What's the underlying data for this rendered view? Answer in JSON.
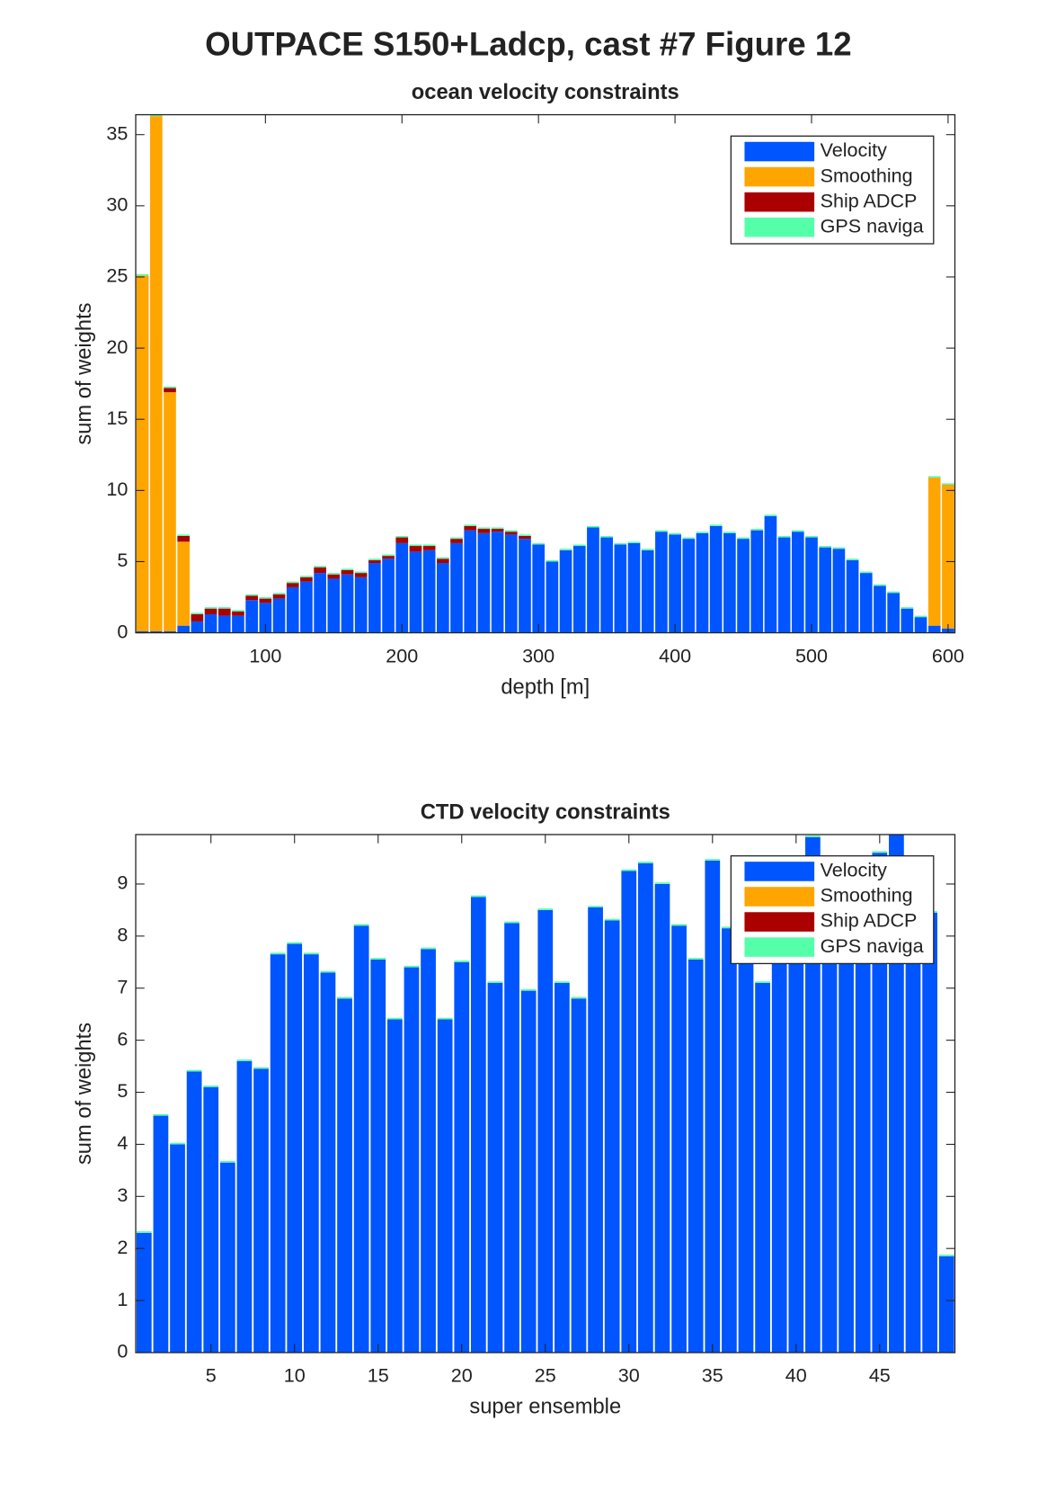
{
  "title": "OUTPACE S150+Ladcp, cast #7  Figure 12",
  "chart_data": [
    {
      "type": "bar",
      "stacked": true,
      "title": "ocean velocity constraints",
      "xlabel": "depth [m]",
      "ylabel": "sum of weights",
      "x": [
        10,
        20,
        30,
        40,
        50,
        60,
        70,
        80,
        90,
        100,
        110,
        120,
        130,
        140,
        150,
        160,
        170,
        180,
        190,
        200,
        210,
        220,
        230,
        240,
        250,
        260,
        270,
        280,
        290,
        300,
        310,
        320,
        330,
        340,
        350,
        360,
        370,
        380,
        390,
        400,
        410,
        420,
        430,
        440,
        450,
        460,
        470,
        480,
        490,
        500,
        510,
        520,
        530,
        540,
        550,
        560,
        570,
        580,
        590,
        600
      ],
      "xlim": [
        5,
        605
      ],
      "xticks": [
        100,
        200,
        300,
        400,
        500,
        600
      ],
      "ylim": [
        0,
        36.4
      ],
      "yticks": [
        0,
        5,
        10,
        15,
        20,
        25,
        30,
        35
      ],
      "legend": "upper right",
      "series": [
        {
          "name": "Velocity",
          "color": "#0055ff",
          "values": [
            0.1,
            0.1,
            0.1,
            0.5,
            0.8,
            1.3,
            1.2,
            1.2,
            2.3,
            2.1,
            2.4,
            3.2,
            3.6,
            4.2,
            3.8,
            4.1,
            3.9,
            4.9,
            5.2,
            6.3,
            5.7,
            5.8,
            4.9,
            6.3,
            7.2,
            7.0,
            7.1,
            6.9,
            6.6,
            6.2,
            5.0,
            5.8,
            6.1,
            7.4,
            6.7,
            6.2,
            6.3,
            5.8,
            7.1,
            6.9,
            6.6,
            7.0,
            7.5,
            7.0,
            6.6,
            7.2,
            8.2,
            6.7,
            7.1,
            6.7,
            6.0,
            5.9,
            5.1,
            4.2,
            3.3,
            2.8,
            1.7,
            1.1,
            0.5,
            0.3
          ]
        },
        {
          "name": "Smoothing",
          "color": "#ffa500",
          "values": [
            25.0,
            36.2,
            16.8,
            5.9,
            0,
            0,
            0,
            0,
            0,
            0,
            0,
            0,
            0,
            0,
            0,
            0,
            0,
            0,
            0,
            0,
            0,
            0,
            0,
            0,
            0,
            0,
            0,
            0,
            0,
            0,
            0,
            0,
            0,
            0,
            0,
            0,
            0,
            0,
            0,
            0,
            0,
            0,
            0,
            0,
            0,
            0,
            0,
            0,
            0,
            0,
            0,
            0,
            0,
            0,
            0,
            0,
            0,
            0,
            10.4,
            10.1
          ]
        },
        {
          "name": "Ship ADCP",
          "color": "#aa0000",
          "values": [
            0,
            0,
            0.3,
            0.4,
            0.5,
            0.4,
            0.5,
            0.3,
            0.3,
            0.3,
            0.3,
            0.3,
            0.3,
            0.4,
            0.3,
            0.3,
            0.3,
            0.2,
            0.2,
            0.4,
            0.4,
            0.3,
            0.3,
            0.3,
            0.3,
            0.3,
            0.2,
            0.2,
            0.2,
            0,
            0,
            0,
            0,
            0,
            0,
            0,
            0,
            0,
            0,
            0,
            0,
            0,
            0,
            0,
            0,
            0,
            0,
            0,
            0,
            0,
            0,
            0,
            0,
            0,
            0,
            0,
            0,
            0,
            0,
            0
          ]
        },
        {
          "name": "GPS naviga",
          "color": "#55ffaa",
          "values": [
            0.1,
            0.1,
            0.1,
            0.1,
            0.1,
            0.1,
            0.1,
            0.1,
            0.1,
            0.1,
            0.1,
            0.1,
            0.1,
            0.1,
            0.1,
            0.1,
            0.1,
            0.1,
            0.1,
            0.1,
            0.1,
            0.1,
            0.1,
            0.1,
            0.1,
            0.1,
            0.1,
            0.1,
            0.1,
            0.1,
            0.1,
            0.1,
            0.1,
            0.1,
            0.1,
            0.1,
            0.1,
            0.1,
            0.1,
            0.1,
            0.1,
            0.1,
            0.1,
            0.1,
            0.1,
            0.1,
            0.1,
            0.1,
            0.1,
            0.1,
            0.1,
            0.1,
            0.1,
            0.1,
            0.1,
            0.1,
            0.1,
            0.1,
            0.1,
            0.1
          ]
        }
      ]
    },
    {
      "type": "bar",
      "stacked": true,
      "title": "CTD velocity constraints",
      "xlabel": "super ensemble",
      "ylabel": "sum of weights",
      "x": [
        1,
        2,
        3,
        4,
        5,
        6,
        7,
        8,
        9,
        10,
        11,
        12,
        13,
        14,
        15,
        16,
        17,
        18,
        19,
        20,
        21,
        22,
        23,
        24,
        25,
        26,
        27,
        28,
        29,
        30,
        31,
        32,
        33,
        34,
        35,
        36,
        37,
        38,
        39,
        40,
        41,
        42,
        43,
        44,
        45,
        46,
        47,
        48,
        49
      ],
      "xlim": [
        0.5,
        49.5
      ],
      "xticks": [
        5,
        10,
        15,
        20,
        25,
        30,
        35,
        40,
        45
      ],
      "ylim": [
        0,
        9.95
      ],
      "yticks": [
        0,
        1,
        2,
        3,
        4,
        5,
        6,
        7,
        8,
        9
      ],
      "legend": "upper right",
      "series": [
        {
          "name": "Velocity",
          "color": "#0055ff",
          "values": [
            2.3,
            4.55,
            4.0,
            5.4,
            5.1,
            3.65,
            5.6,
            5.45,
            7.65,
            7.85,
            7.65,
            7.3,
            6.8,
            8.2,
            7.55,
            6.4,
            7.4,
            7.75,
            6.4,
            7.5,
            8.75,
            7.1,
            8.25,
            6.95,
            8.5,
            7.1,
            6.8,
            8.55,
            8.3,
            9.25,
            9.4,
            9.0,
            8.2,
            7.55,
            9.45,
            8.15,
            7.6,
            7.1,
            8.4,
            9.1,
            9.9,
            9.3,
            8.9,
            9.2,
            9.6,
            9.95,
            9.0,
            8.45,
            1.85
          ]
        },
        {
          "name": "Smoothing",
          "color": "#ffa500",
          "values": [
            0,
            0,
            0,
            0,
            0,
            0,
            0,
            0,
            0,
            0,
            0,
            0,
            0,
            0,
            0,
            0,
            0,
            0,
            0,
            0,
            0,
            0,
            0,
            0,
            0,
            0,
            0,
            0,
            0,
            0,
            0,
            0,
            0,
            0,
            0,
            0,
            0,
            0,
            0,
            0,
            0,
            0,
            0,
            0,
            0,
            0,
            0,
            0,
            0
          ]
        },
        {
          "name": "Ship ADCP",
          "color": "#aa0000",
          "values": [
            0,
            0,
            0,
            0,
            0,
            0,
            0,
            0,
            0,
            0,
            0,
            0,
            0,
            0,
            0,
            0,
            0,
            0,
            0,
            0,
            0,
            0,
            0,
            0,
            0,
            0,
            0,
            0,
            0,
            0,
            0,
            0,
            0,
            0,
            0,
            0,
            0,
            0,
            0,
            0,
            0,
            0,
            0,
            0,
            0,
            0,
            0,
            0,
            0
          ]
        },
        {
          "name": "GPS naviga",
          "color": "#55ffaa",
          "values": [
            0.03,
            0.03,
            0.03,
            0.03,
            0.03,
            0.03,
            0.03,
            0.03,
            0.03,
            0.03,
            0.03,
            0.03,
            0.03,
            0.03,
            0.03,
            0.03,
            0.03,
            0.03,
            0.03,
            0.03,
            0.03,
            0.03,
            0.03,
            0.03,
            0.03,
            0.03,
            0.03,
            0.03,
            0.03,
            0.03,
            0.03,
            0.03,
            0.03,
            0.03,
            0.03,
            0.03,
            0.03,
            0.03,
            0.03,
            0.03,
            0.03,
            0.03,
            0.03,
            0.03,
            0.03,
            0.03,
            0.03,
            0.03,
            0.03
          ]
        }
      ]
    }
  ]
}
